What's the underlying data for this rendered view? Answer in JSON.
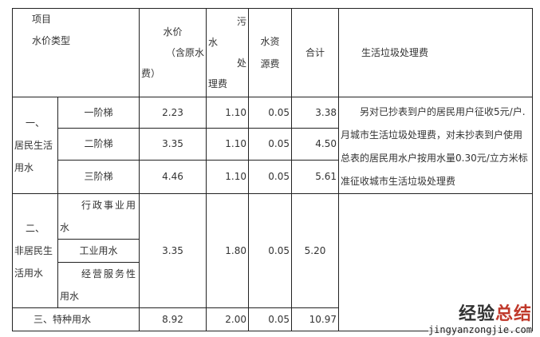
{
  "header": {
    "item": "项目",
    "type": "水价类型",
    "price_a": "水价",
    "price_b": "（含原水",
    "price_c": "费）",
    "sewage_a": "污",
    "sewage_b": "水",
    "sewage_c": "处",
    "sewage_d": "理费",
    "resource_a": "水资",
    "resource_b": "源费",
    "total": "合计",
    "garbage": "生活垃圾处理费"
  },
  "residential": {
    "label_a": "一、",
    "label_b": "居民生活",
    "label_c": "用水",
    "tiers": [
      {
        "name": "一阶梯",
        "price": "2.23",
        "sewage": "1.10",
        "resource": "0.05",
        "total": "3.38"
      },
      {
        "name": "二阶梯",
        "price": "3.35",
        "sewage": "1.10",
        "resource": "0.05",
        "total": "4.50"
      },
      {
        "name": "三阶梯",
        "price": "4.46",
        "sewage": "1.10",
        "resource": "0.05",
        "total": "5.61"
      }
    ],
    "note": "另对已抄表到户的居民用户征收5元/户.月城市生活垃圾处理费，对未抄表到户使用总表的居民用水户按用水量0.30元/立方米标准征收城市生活垃圾处理费"
  },
  "nonresidential": {
    "label_a": "二、",
    "label_b": "非居民生",
    "label_c": "活用水",
    "sub_a1": "行政事业用",
    "sub_a2": "水",
    "sub_b": "工业用水",
    "sub_c1": "经营服务性",
    "sub_c2": "用水",
    "price": "3.35",
    "sewage": "1.80",
    "resource": "0.05",
    "total": "5.20"
  },
  "special": {
    "label": "三、特种用水",
    "price": "8.92",
    "sewage": "2.00",
    "resource": "0.05",
    "total": "10.97"
  },
  "watermark": {
    "part1": "经验",
    "part2": "总结",
    "url": "jingyanzongjie.com"
  }
}
